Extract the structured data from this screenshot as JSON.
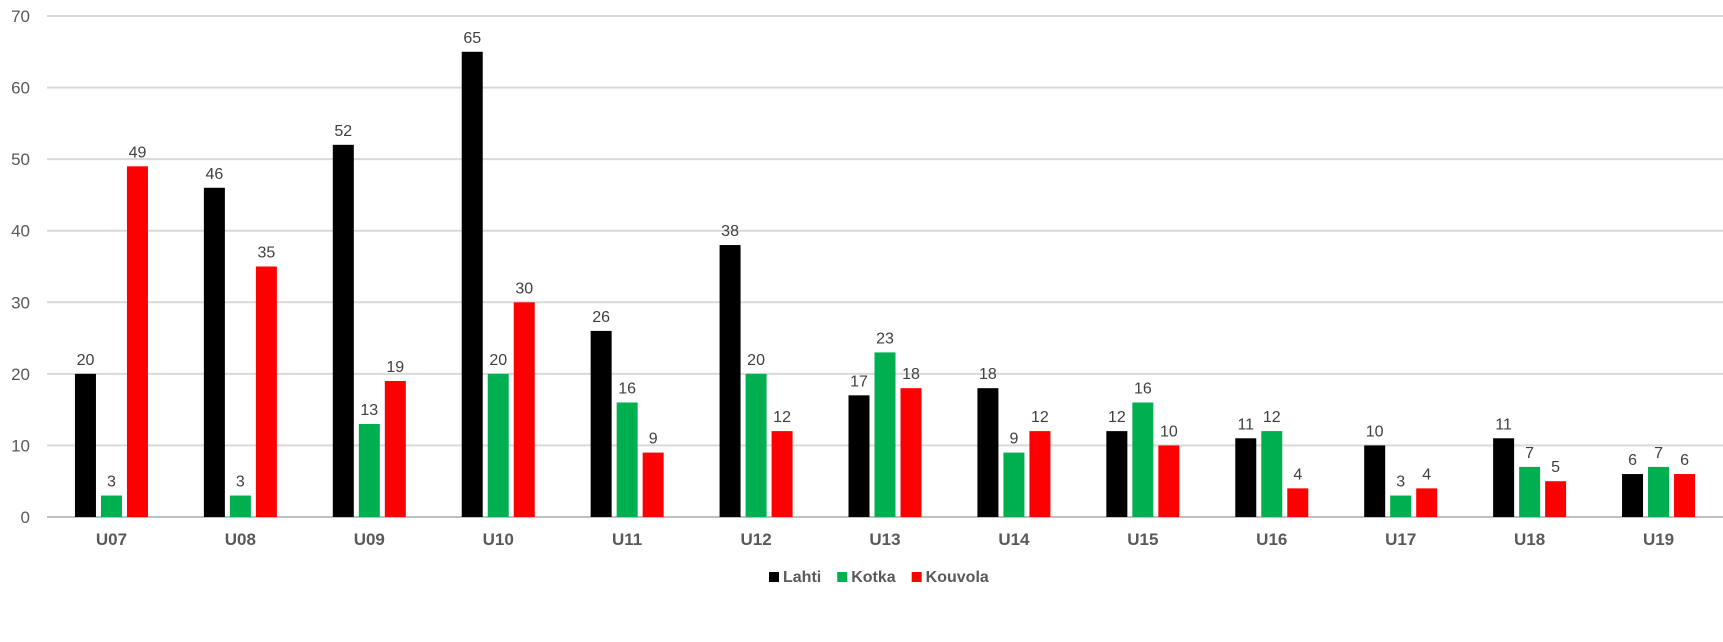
{
  "chart_data": {
    "type": "bar",
    "categories": [
      "U07",
      "U08",
      "U09",
      "U10",
      "U11",
      "U12",
      "U13",
      "U14",
      "U15",
      "U16",
      "U17",
      "U18",
      "U19"
    ],
    "series": [
      {
        "name": "Lahti",
        "color": "#000000",
        "values": [
          20,
          46,
          52,
          65,
          26,
          38,
          17,
          18,
          12,
          11,
          10,
          11,
          6
        ]
      },
      {
        "name": "Kotka",
        "color": "#00b050",
        "values": [
          3,
          3,
          13,
          20,
          16,
          20,
          23,
          9,
          16,
          12,
          3,
          7,
          7
        ]
      },
      {
        "name": "Kouvola",
        "color": "#ff0000",
        "values": [
          49,
          35,
          19,
          30,
          9,
          12,
          18,
          12,
          10,
          4,
          4,
          5,
          6
        ]
      }
    ],
    "title": "",
    "xlabel": "",
    "ylabel": "",
    "ylim": [
      0,
      70
    ],
    "yticks": [
      0,
      10,
      20,
      30,
      40,
      50,
      60,
      70
    ],
    "grid": true,
    "legend_position": "bottom-center"
  }
}
